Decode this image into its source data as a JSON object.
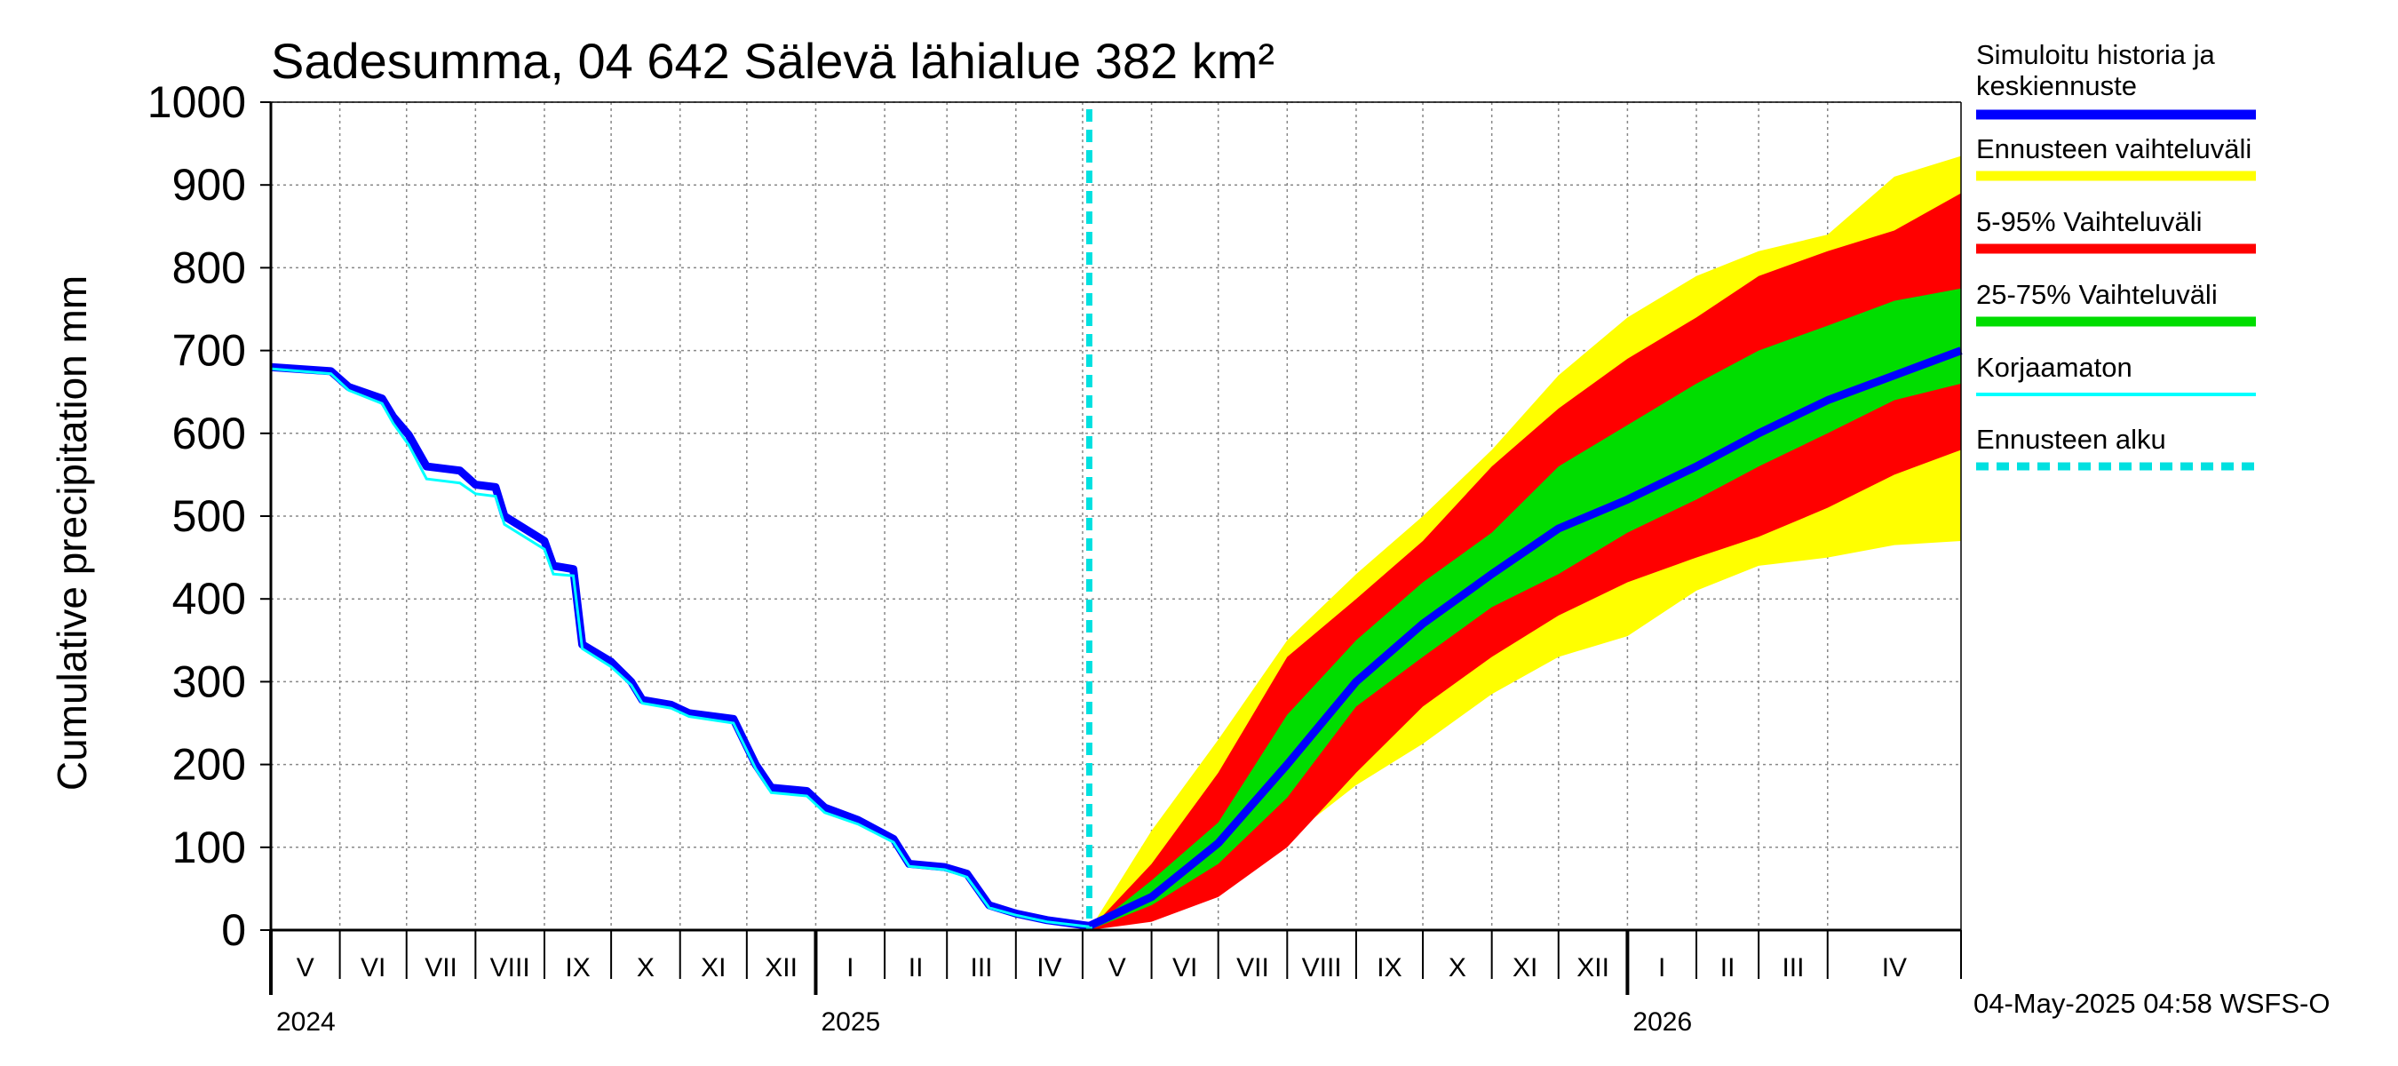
{
  "chart_data": {
    "type": "area",
    "title": "Sadesumma, 04 642 Sälevä lähialue 382 km²",
    "ylabel": "Cumulative precipitation   mm",
    "ylim": [
      0,
      1000
    ],
    "yticks": [
      0,
      100,
      200,
      300,
      400,
      500,
      600,
      700,
      800,
      900,
      1000
    ],
    "x_range": [
      "2024-05-01",
      "2026-05-31"
    ],
    "month_labels": [
      {
        "label": "V",
        "date": "2024-05-01"
      },
      {
        "label": "VI",
        "date": "2024-06-01"
      },
      {
        "label": "VII",
        "date": "2024-07-01"
      },
      {
        "label": "VIII",
        "date": "2024-08-01"
      },
      {
        "label": "IX",
        "date": "2024-09-01"
      },
      {
        "label": "X",
        "date": "2024-10-01"
      },
      {
        "label": "XI",
        "date": "2024-11-01"
      },
      {
        "label": "XII",
        "date": "2024-12-01"
      },
      {
        "label": "I",
        "date": "2025-01-01"
      },
      {
        "label": "II",
        "date": "2025-02-01"
      },
      {
        "label": "III",
        "date": "2025-03-01"
      },
      {
        "label": "IV",
        "date": "2025-04-01"
      },
      {
        "label": "V",
        "date": "2025-05-01"
      },
      {
        "label": "VI",
        "date": "2025-06-01"
      },
      {
        "label": "VII",
        "date": "2025-07-01"
      },
      {
        "label": "VIII",
        "date": "2025-08-01"
      },
      {
        "label": "IX",
        "date": "2025-09-01"
      },
      {
        "label": "X",
        "date": "2025-10-01"
      },
      {
        "label": "XI",
        "date": "2025-11-01"
      },
      {
        "label": "XII",
        "date": "2025-12-01"
      },
      {
        "label": "I",
        "date": "2026-01-01"
      },
      {
        "label": "II",
        "date": "2026-02-01"
      },
      {
        "label": "III",
        "date": "2026-03-01"
      },
      {
        "label": "IV",
        "date": "2026-04-01"
      }
    ],
    "year_labels": [
      {
        "label": "2024",
        "date": "2024-05-01"
      },
      {
        "label": "2025",
        "date": "2025-01-01"
      },
      {
        "label": "2026",
        "date": "2026-01-01"
      }
    ],
    "forecast_start": "2025-05-04",
    "history": {
      "name": "Simuloitu historia ja keskiennuste",
      "color": "#0000ff",
      "points": [
        [
          "2024-05-01",
          680
        ],
        [
          "2024-05-28",
          675
        ],
        [
          "2024-06-05",
          656
        ],
        [
          "2024-06-20",
          642
        ],
        [
          "2024-06-25",
          620
        ],
        [
          "2024-07-02",
          598
        ],
        [
          "2024-07-10",
          560
        ],
        [
          "2024-07-25",
          555
        ],
        [
          "2024-08-01",
          538
        ],
        [
          "2024-08-10",
          535
        ],
        [
          "2024-08-14",
          500
        ],
        [
          "2024-09-01",
          470
        ],
        [
          "2024-09-05",
          440
        ],
        [
          "2024-09-14",
          436
        ],
        [
          "2024-09-18",
          345
        ],
        [
          "2024-10-01",
          324
        ],
        [
          "2024-10-10",
          300
        ],
        [
          "2024-10-15",
          278
        ],
        [
          "2024-10-28",
          272
        ],
        [
          "2024-11-05",
          262
        ],
        [
          "2024-11-25",
          255
        ],
        [
          "2024-12-05",
          200
        ],
        [
          "2024-12-12",
          172
        ],
        [
          "2024-12-28",
          168
        ],
        [
          "2025-01-05",
          148
        ],
        [
          "2025-01-20",
          133
        ],
        [
          "2025-02-05",
          110
        ],
        [
          "2025-02-12",
          80
        ],
        [
          "2025-02-28",
          76
        ],
        [
          "2025-03-10",
          68
        ],
        [
          "2025-03-20",
          30
        ],
        [
          "2025-04-01",
          20
        ],
        [
          "2025-04-15",
          12
        ],
        [
          "2025-05-04",
          5
        ]
      ]
    },
    "uncorrected": {
      "name": "Korjaamaton",
      "color": "#00ffff",
      "points": [
        [
          "2024-05-01",
          678
        ],
        [
          "2024-05-28",
          672
        ],
        [
          "2024-06-05",
          652
        ],
        [
          "2024-06-20",
          636
        ],
        [
          "2024-06-25",
          612
        ],
        [
          "2024-07-02",
          586
        ],
        [
          "2024-07-10",
          545
        ],
        [
          "2024-07-25",
          540
        ],
        [
          "2024-08-01",
          527
        ],
        [
          "2024-08-10",
          524
        ],
        [
          "2024-08-14",
          490
        ],
        [
          "2024-09-01",
          460
        ],
        [
          "2024-09-05",
          430
        ],
        [
          "2024-09-14",
          428
        ],
        [
          "2024-09-18",
          340
        ],
        [
          "2024-10-01",
          318
        ],
        [
          "2024-10-10",
          296
        ],
        [
          "2024-10-15",
          274
        ],
        [
          "2024-10-28",
          268
        ],
        [
          "2024-11-05",
          258
        ],
        [
          "2024-11-25",
          250
        ],
        [
          "2024-12-05",
          195
        ],
        [
          "2024-12-12",
          166
        ],
        [
          "2024-12-28",
          162
        ],
        [
          "2025-01-05",
          142
        ],
        [
          "2025-01-20",
          128
        ],
        [
          "2025-02-05",
          106
        ],
        [
          "2025-02-12",
          77
        ],
        [
          "2025-02-28",
          73
        ],
        [
          "2025-03-10",
          64
        ],
        [
          "2025-03-20",
          27
        ],
        [
          "2025-04-01",
          18
        ],
        [
          "2025-04-15",
          10
        ],
        [
          "2025-05-04",
          4
        ]
      ]
    },
    "forecast_x": [
      "2025-05-04",
      "2025-06-01",
      "2025-07-01",
      "2025-08-01",
      "2025-09-01",
      "2025-10-01",
      "2025-11-01",
      "2025-12-01",
      "2026-01-01",
      "2026-02-01",
      "2026-03-01",
      "2026-04-01",
      "2026-05-01",
      "2026-05-31"
    ],
    "bands": [
      {
        "name": "Ennusteen vaihteluväli",
        "color": "#ffff00",
        "low": [
          0,
          20,
          60,
          110,
          175,
          225,
          285,
          330,
          355,
          410,
          440,
          450,
          465,
          470
        ],
        "high": [
          0,
          120,
          230,
          350,
          430,
          500,
          580,
          670,
          740,
          790,
          820,
          840,
          910,
          935
        ]
      },
      {
        "name": "5-95% Vaihteluväli",
        "color": "#ff0000",
        "low": [
          0,
          10,
          40,
          100,
          190,
          270,
          330,
          380,
          420,
          450,
          475,
          510,
          550,
          580
        ],
        "high": [
          0,
          80,
          190,
          330,
          400,
          470,
          560,
          630,
          690,
          740,
          790,
          820,
          845,
          890
        ]
      },
      {
        "name": "25-75% Vaihteluväli",
        "color": "#00dd00",
        "low": [
          0,
          30,
          80,
          160,
          270,
          330,
          390,
          430,
          480,
          520,
          560,
          600,
          640,
          660
        ],
        "high": [
          0,
          60,
          130,
          260,
          350,
          420,
          480,
          560,
          610,
          660,
          700,
          730,
          760,
          775
        ]
      }
    ],
    "median": {
      "name": "Simuloitu historia ja keskiennuste",
      "values": [
        5,
        40,
        105,
        200,
        300,
        370,
        430,
        485,
        520,
        560,
        600,
        640,
        670,
        700
      ]
    },
    "grid": true,
    "legend_position": "right"
  },
  "legend": [
    {
      "label": "Simuloitu historia ja",
      "label2": "keskiennuste",
      "color": "#0000ff",
      "style": "solid"
    },
    {
      "label": "Ennusteen vaihteluväli",
      "color": "#ffff00",
      "style": "solid"
    },
    {
      "label": "5-95% Vaihteluväli",
      "color": "#ff0000",
      "style": "solid"
    },
    {
      "label": "25-75% Vaihteluväli",
      "color": "#00dd00",
      "style": "solid"
    },
    {
      "label": "Korjaamaton",
      "color": "#00ffff",
      "style": "thin"
    },
    {
      "label": "Ennusteen alku",
      "color": "#00e0e0",
      "style": "dashed"
    }
  ],
  "footer": "04-May-2025 04:58 WSFS-O"
}
